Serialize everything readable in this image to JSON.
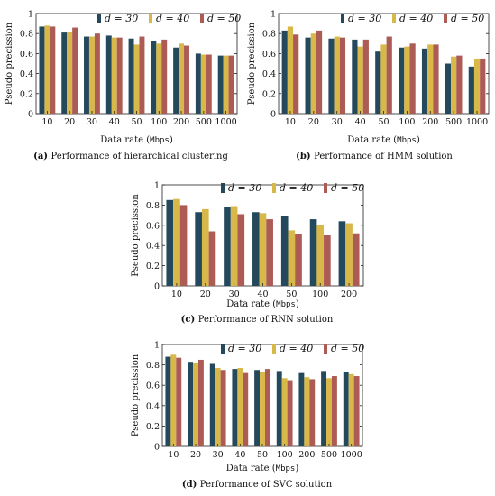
{
  "colors": {
    "d30": "#24495d",
    "d40": "#d9b84a",
    "d50": "#ac5b55"
  },
  "chart_data": [
    {
      "id": "a",
      "type": "bar",
      "caption_label": "(a)",
      "caption_text": "Performance of hierarchical clustering",
      "xlabel": "Data rate",
      "xlabel_unit": "Mbps",
      "ylabel": "Pseudo precission",
      "ylim": [
        0,
        1
      ],
      "yticks": [
        "0",
        "0.2",
        "0.4",
        "0.6",
        "0.8",
        "1"
      ],
      "categories": [
        "10",
        "20",
        "30",
        "40",
        "50",
        "100",
        "200",
        "500",
        "1000"
      ],
      "legend_position": "top-right",
      "series": [
        {
          "name": "d = 30",
          "values": [
            0.87,
            0.81,
            0.77,
            0.78,
            0.75,
            0.73,
            0.66,
            0.6,
            0.58
          ]
        },
        {
          "name": "d = 40",
          "values": [
            0.88,
            0.82,
            0.77,
            0.76,
            0.69,
            0.7,
            0.7,
            0.59,
            0.58
          ]
        },
        {
          "name": "d = 50",
          "values": [
            0.87,
            0.86,
            0.8,
            0.76,
            0.77,
            0.74,
            0.68,
            0.59,
            0.58
          ]
        }
      ]
    },
    {
      "id": "b",
      "type": "bar",
      "caption_label": "(b)",
      "caption_text": "Performance of HMM solution",
      "xlabel": "Data rate",
      "xlabel_unit": "Mbps",
      "ylabel": "Pseudo precission",
      "ylim": [
        0,
        1
      ],
      "yticks": [
        "0",
        "0.2",
        "0.4",
        "0.6",
        "0.8",
        "1"
      ],
      "categories": [
        "10",
        "20",
        "30",
        "40",
        "50",
        "100",
        "200",
        "500",
        "1000"
      ],
      "legend_position": "top-right",
      "series": [
        {
          "name": "d = 30",
          "values": [
            0.83,
            0.76,
            0.75,
            0.74,
            0.62,
            0.66,
            0.65,
            0.5,
            0.47
          ]
        },
        {
          "name": "d = 40",
          "values": [
            0.87,
            0.8,
            0.77,
            0.67,
            0.69,
            0.67,
            0.69,
            0.57,
            0.55
          ]
        },
        {
          "name": "d = 50",
          "values": [
            0.79,
            0.83,
            0.76,
            0.74,
            0.77,
            0.7,
            0.69,
            0.58,
            0.55
          ]
        }
      ]
    },
    {
      "id": "c",
      "type": "bar",
      "caption_label": "(c)",
      "caption_text": "Performance of RNN solution",
      "xlabel": "Data rate",
      "xlabel_unit": "Mbps",
      "ylabel": "Pseudo precission",
      "ylim": [
        0,
        1
      ],
      "yticks": [
        "0",
        "0.2",
        "0.4",
        "0.6",
        "0.8",
        "1"
      ],
      "categories": [
        "10",
        "20",
        "30",
        "40",
        "50",
        "100",
        "200"
      ],
      "legend_position": "top-right",
      "series": [
        {
          "name": "d = 30",
          "values": [
            0.85,
            0.73,
            0.78,
            0.73,
            0.69,
            0.66,
            0.64
          ]
        },
        {
          "name": "d = 40",
          "values": [
            0.86,
            0.76,
            0.79,
            0.72,
            0.55,
            0.6,
            0.62
          ]
        },
        {
          "name": "d = 50",
          "values": [
            0.8,
            0.54,
            0.71,
            0.66,
            0.51,
            0.5,
            0.52
          ]
        }
      ]
    },
    {
      "id": "d",
      "type": "bar",
      "caption_label": "(d)",
      "caption_text": "Performance of SVC solution",
      "xlabel": "Data rate",
      "xlabel_unit": "Mbps",
      "ylabel": "Pseudo precission",
      "ylim": [
        0,
        1
      ],
      "yticks": [
        "0",
        "0.2",
        "0.4",
        "0.6",
        "0.8",
        "1"
      ],
      "categories": [
        "10",
        "20",
        "30",
        "40",
        "50",
        "100",
        "200",
        "500",
        "1000"
      ],
      "legend_position": "top-right",
      "series": [
        {
          "name": "d = 30",
          "values": [
            0.88,
            0.83,
            0.81,
            0.76,
            0.75,
            0.74,
            0.72,
            0.74,
            0.73
          ]
        },
        {
          "name": "d = 40",
          "values": [
            0.9,
            0.82,
            0.77,
            0.77,
            0.73,
            0.67,
            0.68,
            0.67,
            0.71
          ]
        },
        {
          "name": "d = 50",
          "values": [
            0.87,
            0.85,
            0.75,
            0.72,
            0.76,
            0.65,
            0.66,
            0.69,
            0.69
          ]
        }
      ]
    }
  ]
}
